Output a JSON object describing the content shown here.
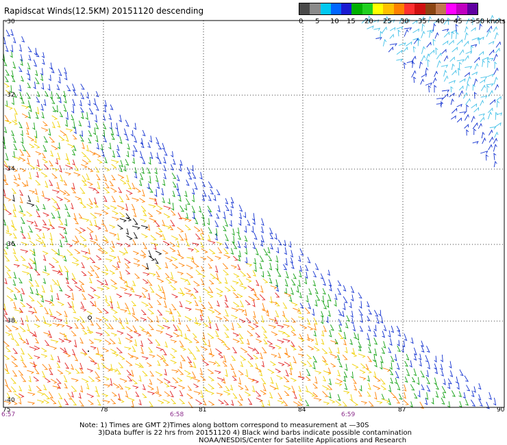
{
  "title": "Rapidscat Winds(12.5KM) 20151120 descending",
  "colorbar": {
    "colors": [
      "#4a4a4a",
      "#8a8a8a",
      "#00c8f0",
      "#0066ff",
      "#1a1ad0",
      "#00b000",
      "#20d020",
      "#ffff00",
      "#ffc000",
      "#ff8000",
      "#ff3030",
      "#d01010",
      "#8b4513",
      "#c07850",
      "#ff00ff",
      "#c000c0",
      "#6000a0"
    ],
    "labels": [
      "0",
      "5",
      "10",
      "15",
      "20",
      "25",
      "30",
      "35",
      "40",
      "45",
      ">50 knots"
    ]
  },
  "lat_labels": [
    "-30",
    "-32",
    "-34",
    "-36",
    "-38",
    "-40"
  ],
  "lon_labels": [
    "75",
    "78",
    "81",
    "84",
    "87",
    "90"
  ],
  "time_labels": [
    "6:57",
    "6:58",
    "6:59"
  ],
  "notes": [
    "Note: 1) Times are GMT 2)Times along bottom correspond to measurement at —30S",
    "3)Data buffer is 22 hrs from 20151120 4) Black wind barbs indicate possible contamination",
    "NOAA/NESDIS/Center for Satellite Applications and Research"
  ],
  "palette": {
    "light_blue": "#40c0e8",
    "blue": "#1030d0",
    "green": "#10a010",
    "yellow": "#f0d000",
    "orange": "#ff8000",
    "red": "#e02020",
    "black": "#000000"
  }
}
